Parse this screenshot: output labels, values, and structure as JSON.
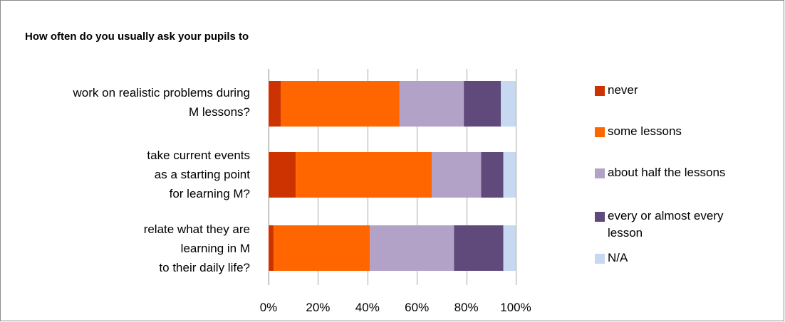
{
  "chart_data": {
    "type": "bar",
    "orientation": "horizontal",
    "stacked": true,
    "percent": true,
    "title": "How often do you usually ask your pupils to",
    "categories": [
      "work on realistic problems during\nM lessons?",
      "take current events\nas a starting point\nfor learning M?",
      "relate what they are\nlearning in M\nto their daily life?"
    ],
    "series": [
      {
        "name": "never",
        "color": "#CC3300",
        "values": [
          5,
          11,
          2
        ]
      },
      {
        "name": "some lessons",
        "color": "#FF6600",
        "values": [
          48,
          55,
          39
        ]
      },
      {
        "name": "about half the lessons",
        "color": "#B3A2C7",
        "values": [
          26,
          20,
          34
        ]
      },
      {
        "name": "every or almost every lesson",
        "color": "#604A7B",
        "values": [
          15,
          9,
          20
        ]
      },
      {
        "name": "N/A",
        "color": "#C6D9F1",
        "values": [
          6,
          5,
          5
        ]
      }
    ],
    "xlim": [
      0,
      100
    ],
    "x_ticks": [
      "0%",
      "20%",
      "40%",
      "60%",
      "80%",
      "100%"
    ],
    "grid": "vertical",
    "legend_position": "right"
  }
}
